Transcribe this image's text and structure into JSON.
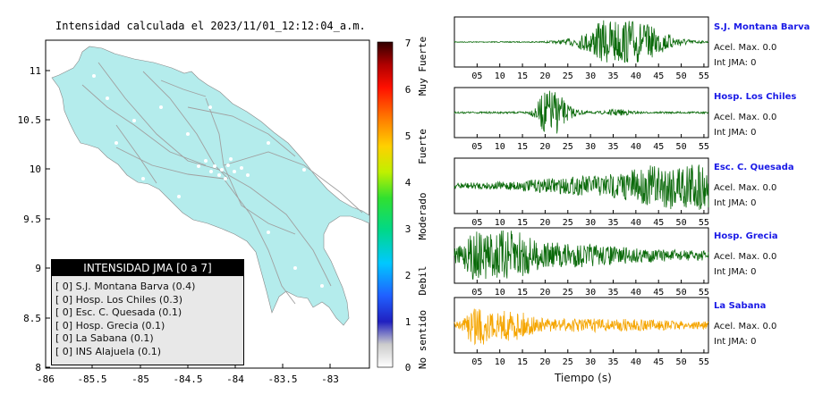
{
  "map": {
    "title": "Intensidad calculada el 2023/11/01_12:12:04_a.m.",
    "lon_ticks": [
      "-86",
      "-85.5",
      "-85",
      "-84.5",
      "-84",
      "-83.5",
      "-83"
    ],
    "lat_ticks": [
      "11",
      "10.5",
      "10",
      "9.5",
      "9",
      "8.5",
      "8"
    ],
    "land_color": "#b4ecec",
    "sea_color": "#ffffff"
  },
  "legend": {
    "title": "INTENSIDAD JMA [0 a 7]",
    "rows": [
      "[ 0]  S.J. Montana Barva (0.4)",
      "[ 0]  Hosp. Los Chiles (0.3)",
      "[ 0]  Esc. C. Quesada (0.1)",
      "[ 0]  Hosp. Grecia (0.1)",
      "[ 0]  La Sabana (0.1)",
      "[ 0]  INS Alajuela (0.1)"
    ]
  },
  "colorbar": {
    "ticks": [
      "7",
      "6",
      "5",
      "4",
      "3",
      "2",
      "1",
      "0"
    ],
    "labels": [
      "Muy Fuerte",
      "Fuerte",
      "Moderado",
      "Debil",
      "No sentido"
    ]
  },
  "stations": [
    {
      "name": "S.J. Montana Barva",
      "accel": "Acel. Max. 0.0",
      "jma": "Int JMA: 0",
      "color": "#0a6a0a",
      "ticks": [
        "05",
        "10",
        "15",
        "20",
        "25",
        "30",
        "35",
        "40",
        "45",
        "50",
        "55"
      ]
    },
    {
      "name": "Hosp. Los Chiles",
      "accel": "Acel. Max. 0.0",
      "jma": "Int JMA: 0",
      "color": "#0a6a0a",
      "ticks": [
        "05",
        "10",
        "15",
        "20",
        "25",
        "30",
        "35",
        "40",
        "45",
        "50",
        "55"
      ]
    },
    {
      "name": "Esc. C. Quesada",
      "accel": "Acel. Max. 0.0",
      "jma": "Int JMA: 0",
      "color": "#0a6a0a",
      "ticks": [
        "05",
        "10",
        "15",
        "20",
        "25",
        "30",
        "35",
        "40",
        "45",
        "50",
        "55"
      ]
    },
    {
      "name": "Hosp. Grecia",
      "accel": "Acel. Max. 0.0",
      "jma": "Int JMA: 0",
      "color": "#0a6a0a",
      "ticks": [
        "05",
        "10",
        "15",
        "20",
        "25",
        "30",
        "35",
        "40",
        "45",
        "50",
        "55"
      ]
    },
    {
      "name": "La Sabana",
      "accel": "Acel. Max. 0.0",
      "jma": "Int JMA: 0",
      "color": "#f5a500",
      "ticks": [
        "05",
        "10",
        "15",
        "20",
        "25",
        "30",
        "35",
        "40",
        "45",
        "50",
        "55"
      ]
    }
  ],
  "xaxis_title": "Tiempo (s)"
}
